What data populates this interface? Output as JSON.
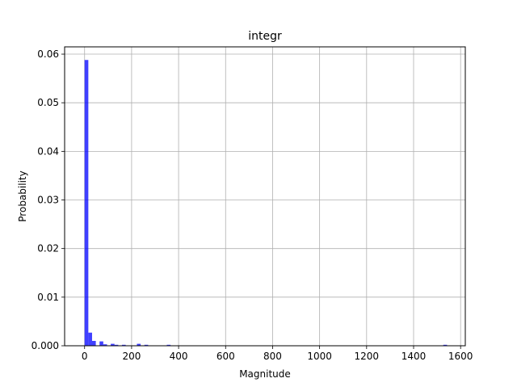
{
  "chart_data": {
    "type": "bar",
    "title": "integr",
    "xlabel": "Magnitude",
    "ylabel": "Probability",
    "xlim": [
      -85,
      1620
    ],
    "ylim": [
      0,
      0.0615
    ],
    "grid": true,
    "color": "#0000ff",
    "bin_width": 15.9,
    "x_ticks": [
      0,
      200,
      400,
      600,
      800,
      1000,
      1200,
      1400,
      1600
    ],
    "x_tick_labels": [
      "0",
      "200",
      "400",
      "600",
      "800",
      "1000",
      "1200",
      "1400",
      "1600"
    ],
    "y_ticks": [
      0,
      0.01,
      0.02,
      0.03,
      0.04,
      0.05,
      0.06
    ],
    "y_tick_labels": [
      "0.000",
      "0.01",
      "0.02",
      "0.03",
      "0.04",
      "0.05",
      "0.06"
    ],
    "bins": [
      {
        "x": 0,
        "y": 0.0588
      },
      {
        "x": 15.9,
        "y": 0.0027
      },
      {
        "x": 31.8,
        "y": 0.001
      },
      {
        "x": 63.6,
        "y": 0.0009
      },
      {
        "x": 79.5,
        "y": 0.0003
      },
      {
        "x": 111.3,
        "y": 0.0004
      },
      {
        "x": 127.2,
        "y": 0.0002
      },
      {
        "x": 159.0,
        "y": 0.0002
      },
      {
        "x": 222.6,
        "y": 0.0004
      },
      {
        "x": 254.4,
        "y": 0.0002
      },
      {
        "x": 349.8,
        "y": 0.0002
      },
      {
        "x": 1526.4,
        "y": 0.0002
      }
    ]
  }
}
